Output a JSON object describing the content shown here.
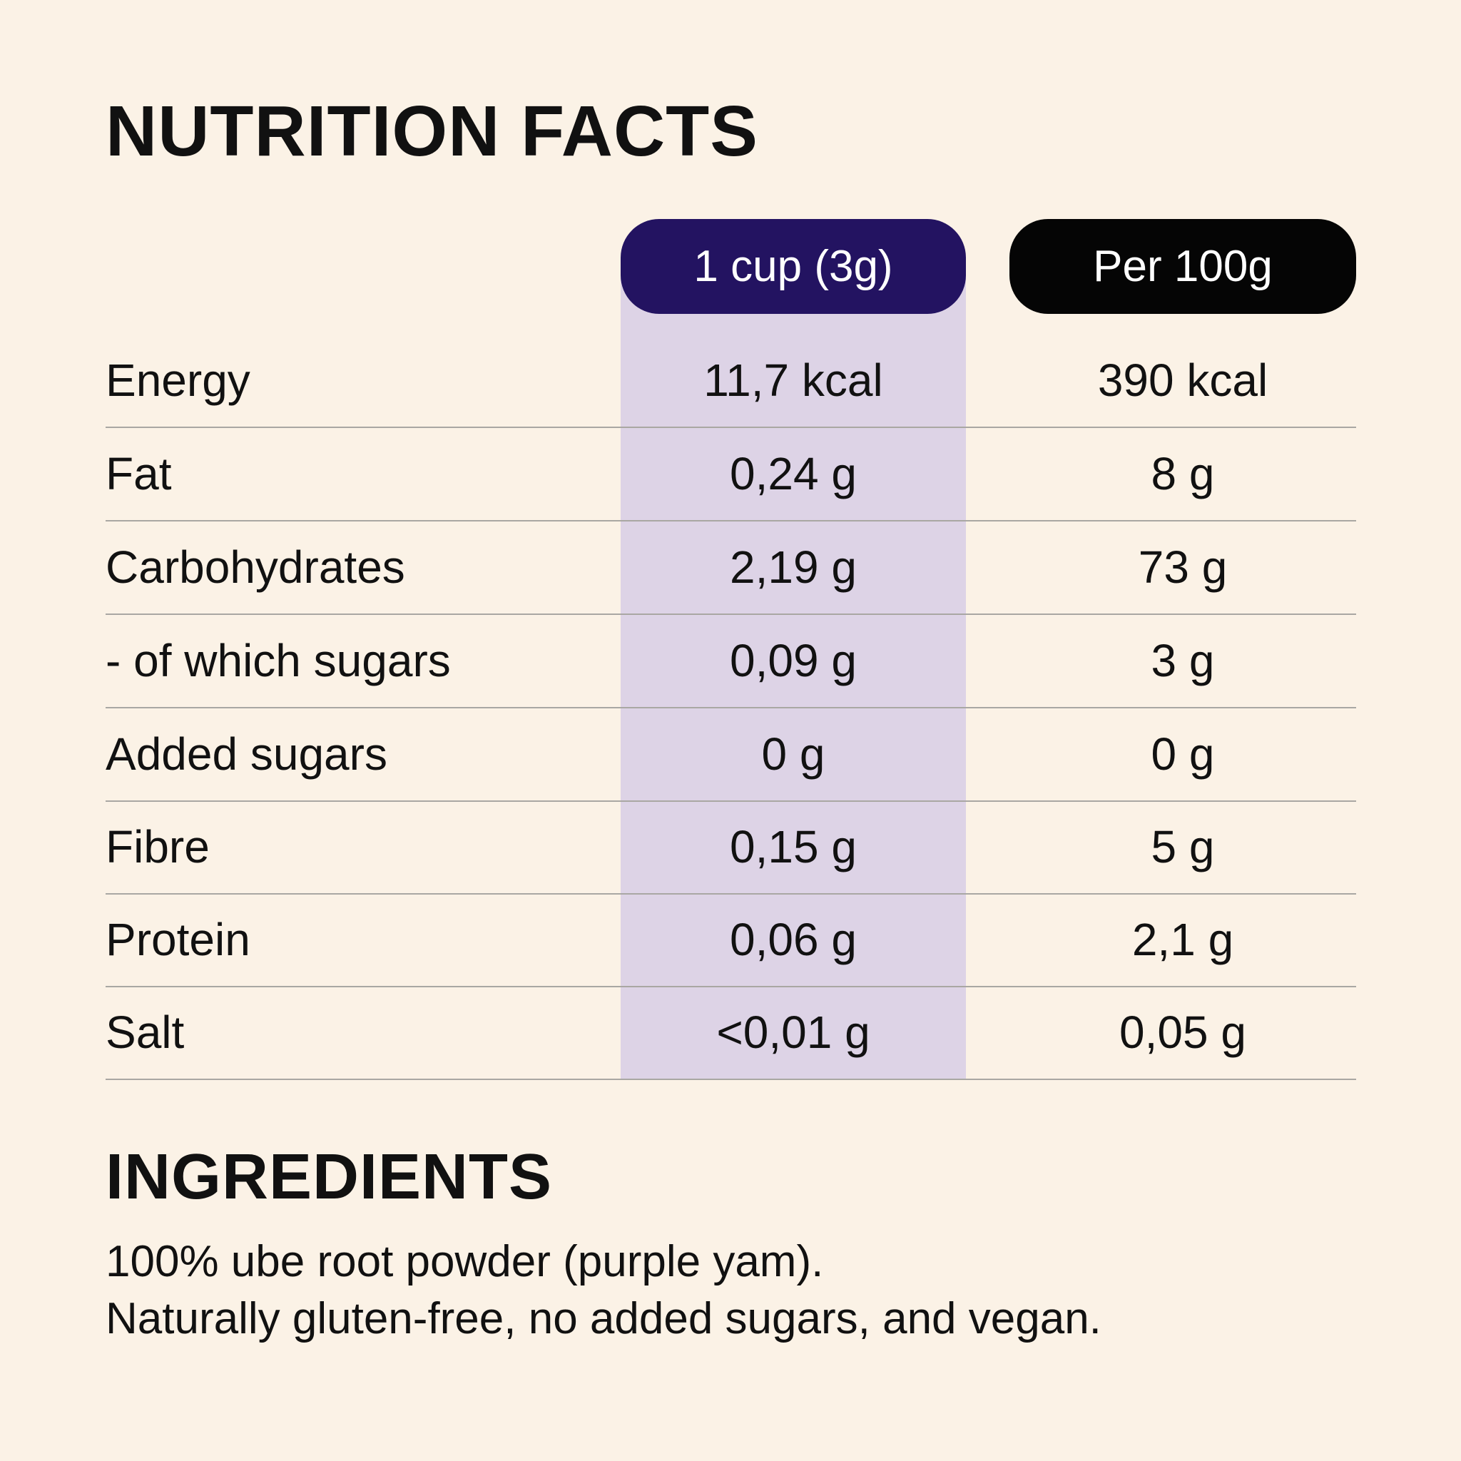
{
  "nutrition": {
    "title": "NUTRITION FACTS",
    "columns": {
      "serving": "1 cup (3g)",
      "per100": "Per 100g"
    },
    "rows": [
      {
        "label": "Energy",
        "serving": "11,7 kcal",
        "per100": "390 kcal"
      },
      {
        "label": "Fat",
        "serving": "0,24 g",
        "per100": "8 g"
      },
      {
        "label": "Carbohydrates",
        "serving": "2,19 g",
        "per100": "73 g"
      },
      {
        "label": "- of which sugars",
        "serving": "0,09 g",
        "per100": "3 g"
      },
      {
        "label": "Added sugars",
        "serving": "0 g",
        "per100": "0 g"
      },
      {
        "label": "Fibre",
        "serving": "0,15 g",
        "per100": "5 g"
      },
      {
        "label": "Protein",
        "serving": "0,06 g",
        "per100": "2,1 g"
      },
      {
        "label": "Salt",
        "serving": "<0,01 g",
        "per100": "0,05 g"
      }
    ]
  },
  "ingredients": {
    "title": "INGREDIENTS",
    "line1": "100% ube root powder (purple yam).",
    "line2": "Naturally gluten-free, no added sugars, and vegan."
  },
  "colors": {
    "background": "#fbf2e6",
    "serving_band": "#ddd3e6",
    "serving_pill": "#231361",
    "per100_pill": "#050505"
  }
}
